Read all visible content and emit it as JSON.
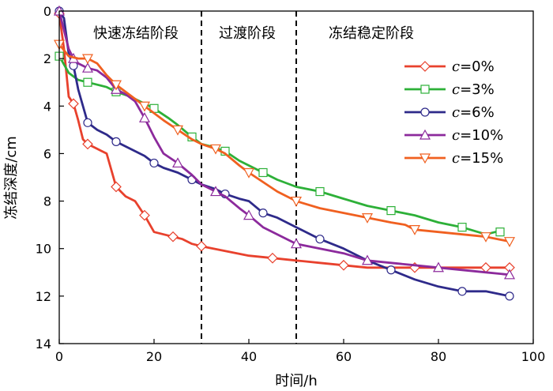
{
  "chart_data": {
    "type": "line",
    "xlabel": "时间/h",
    "ylabel": "冻结深度/cm",
    "xlim": [
      0,
      100
    ],
    "ylim": [
      0,
      14
    ],
    "y_axis_inverted": true,
    "xticks": [
      0,
      20,
      40,
      60,
      80,
      100
    ],
    "yticks": [
      0,
      2,
      4,
      6,
      8,
      10,
      12,
      14
    ],
    "grid": false,
    "legend_position": "right",
    "phase_lines": [
      30,
      50
    ],
    "phase_labels": [
      "快速冻结阶段",
      "过渡阶段",
      "冻结稳定阶段"
    ],
    "series": [
      {
        "name": "c=0%",
        "color": "#e8412d",
        "marker": "diamond",
        "x": [
          0,
          1,
          2,
          3,
          4,
          5,
          6,
          8,
          10,
          12,
          14,
          16,
          18,
          20,
          22,
          24,
          26,
          28,
          30,
          35,
          40,
          45,
          50,
          55,
          60,
          65,
          70,
          75,
          80,
          85,
          90,
          95
        ],
        "y": [
          0.1,
          1.6,
          3.6,
          3.9,
          4.6,
          5.4,
          5.6,
          5.8,
          6.0,
          7.4,
          7.8,
          8.0,
          8.6,
          9.3,
          9.4,
          9.5,
          9.6,
          9.8,
          9.9,
          10.1,
          10.3,
          10.4,
          10.5,
          10.6,
          10.7,
          10.8,
          10.8,
          10.8,
          10.8,
          10.8,
          10.8,
          10.8
        ]
      },
      {
        "name": "c=3%",
        "color": "#2db038",
        "marker": "square",
        "x": [
          0,
          2,
          4,
          6,
          8,
          10,
          12,
          15,
          18,
          20,
          23,
          25,
          28,
          30,
          32,
          35,
          38,
          40,
          43,
          46,
          50,
          55,
          60,
          65,
          70,
          75,
          80,
          85,
          90,
          92,
          93
        ],
        "y": [
          1.9,
          2.6,
          2.9,
          3.0,
          3.1,
          3.2,
          3.4,
          3.6,
          3.9,
          4.1,
          4.5,
          4.8,
          5.3,
          5.6,
          5.7,
          5.9,
          6.3,
          6.5,
          6.8,
          7.1,
          7.4,
          7.6,
          7.9,
          8.2,
          8.4,
          8.6,
          8.9,
          9.1,
          9.4,
          9.3,
          9.3
        ]
      },
      {
        "name": "c=6%",
        "color": "#2e2a8a",
        "marker": "circle",
        "x": [
          0,
          1,
          2,
          3,
          4,
          5,
          6,
          8,
          10,
          12,
          15,
          18,
          20,
          22,
          25,
          28,
          30,
          33,
          35,
          38,
          40,
          43,
          46,
          50,
          55,
          60,
          65,
          70,
          75,
          80,
          85,
          90,
          95
        ],
        "y": [
          0.0,
          0.3,
          1.8,
          2.3,
          3.3,
          4.0,
          4.7,
          5.0,
          5.2,
          5.5,
          5.8,
          6.1,
          6.4,
          6.6,
          6.8,
          7.1,
          7.3,
          7.5,
          7.7,
          7.9,
          8.0,
          8.5,
          8.7,
          9.1,
          9.6,
          10.0,
          10.5,
          10.9,
          11.3,
          11.6,
          11.8,
          11.8,
          12.0
        ]
      },
      {
        "name": "c=10%",
        "color": "#8c2a9c",
        "marker": "triangle-up",
        "x": [
          0,
          1,
          2,
          3,
          4,
          5,
          6,
          8,
          10,
          12,
          14,
          16,
          18,
          20,
          22,
          25,
          28,
          30,
          33,
          35,
          38,
          40,
          43,
          46,
          50,
          55,
          60,
          65,
          70,
          75,
          80,
          85,
          90,
          95
        ],
        "y": [
          0.0,
          0.8,
          1.6,
          2.0,
          2.2,
          2.3,
          2.4,
          2.5,
          2.8,
          3.3,
          3.5,
          3.8,
          4.5,
          5.3,
          6.0,
          6.4,
          6.9,
          7.3,
          7.6,
          7.8,
          8.3,
          8.6,
          9.1,
          9.4,
          9.8,
          10.0,
          10.2,
          10.5,
          10.6,
          10.7,
          10.8,
          10.9,
          11.0,
          11.1
        ]
      },
      {
        "name": "c=15%",
        "color": "#f06020",
        "marker": "triangle-down",
        "x": [
          0,
          2,
          4,
          6,
          8,
          10,
          12,
          14,
          16,
          18,
          20,
          22,
          25,
          28,
          30,
          33,
          35,
          38,
          40,
          43,
          46,
          50,
          55,
          60,
          65,
          70,
          73,
          75,
          80,
          85,
          90,
          95
        ],
        "y": [
          1.4,
          1.9,
          2.0,
          2.0,
          2.2,
          2.7,
          3.1,
          3.4,
          3.7,
          4.0,
          4.3,
          4.6,
          5.0,
          5.4,
          5.6,
          5.8,
          6.0,
          6.5,
          6.8,
          7.2,
          7.6,
          8.0,
          8.3,
          8.5,
          8.7,
          8.9,
          9.0,
          9.2,
          9.3,
          9.4,
          9.5,
          9.7
        ]
      }
    ]
  }
}
